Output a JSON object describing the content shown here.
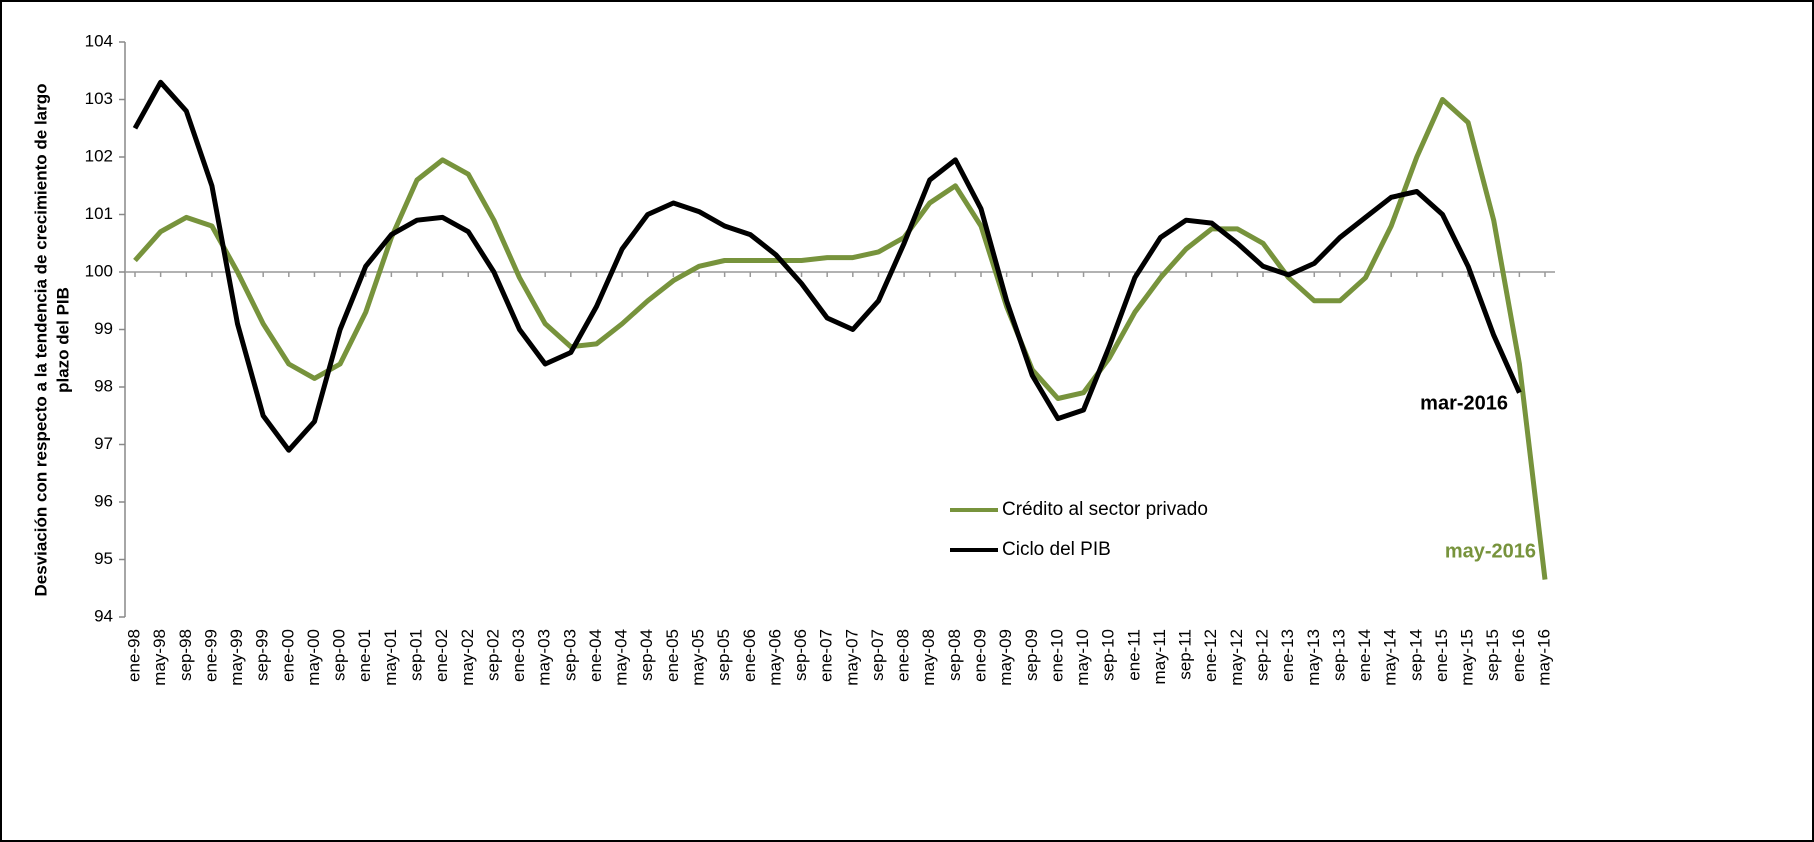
{
  "chart_data": {
    "type": "line",
    "ylabel": [
      "Desviación con respecto  a la tendencia de  crecimiento de largo",
      "plazo del PIB"
    ],
    "categories": [
      "ene-98",
      "may-98",
      "sep-98",
      "ene-99",
      "may-99",
      "sep-99",
      "ene-00",
      "may-00",
      "sep-00",
      "ene-01",
      "may-01",
      "sep-01",
      "ene-02",
      "may-02",
      "sep-02",
      "ene-03",
      "may-03",
      "sep-03",
      "ene-04",
      "may-04",
      "sep-04",
      "ene-05",
      "may-05",
      "sep-05",
      "ene-06",
      "may-06",
      "sep-06",
      "ene-07",
      "may-07",
      "sep-07",
      "ene-08",
      "may-08",
      "sep-08",
      "ene-09",
      "may-09",
      "sep-09",
      "ene-10",
      "may-10",
      "sep-10",
      "ene-11",
      "may-11",
      "sep-11",
      "ene-12",
      "may-12",
      "sep-12",
      "ene-13",
      "may-13",
      "sep-13",
      "ene-14",
      "may-14",
      "sep-14",
      "ene-15",
      "may-15",
      "sep-15",
      "ene-16",
      "may-16"
    ],
    "series": [
      {
        "name": "Crédito al sector privado",
        "color": "#77933c",
        "values": [
          100.2,
          100.7,
          100.95,
          100.8,
          100.0,
          99.1,
          98.4,
          98.15,
          98.4,
          99.3,
          100.6,
          101.6,
          101.95,
          101.7,
          100.9,
          99.9,
          99.1,
          98.7,
          98.75,
          99.1,
          99.5,
          99.85,
          100.1,
          100.2,
          100.2,
          100.2,
          100.2,
          100.25,
          100.25,
          100.35,
          100.6,
          101.2,
          101.5,
          100.8,
          99.4,
          98.3,
          97.8,
          97.9,
          98.5,
          99.3,
          99.9,
          100.4,
          100.75,
          100.75,
          100.5,
          99.9,
          99.5,
          99.5,
          99.9,
          100.8,
          102.0,
          103.0,
          102.6,
          100.9,
          98.4,
          94.65
        ]
      },
      {
        "name": "Ciclo del PIB",
        "color": "#000000",
        "values": [
          102.5,
          103.3,
          102.8,
          101.5,
          99.1,
          97.5,
          96.9,
          97.4,
          99.0,
          100.1,
          100.65,
          100.9,
          100.95,
          100.7,
          100.0,
          99.0,
          98.4,
          98.6,
          99.4,
          100.4,
          101.0,
          101.2,
          101.05,
          100.8,
          100.65,
          100.3,
          99.8,
          99.2,
          99.0,
          99.5,
          100.5,
          101.6,
          101.95,
          101.1,
          99.5,
          98.2,
          97.45,
          97.6,
          98.7,
          99.9,
          100.6,
          100.9,
          100.85,
          100.5,
          100.1,
          99.95,
          100.15,
          100.6,
          100.95,
          101.3,
          101.4,
          101.0,
          100.1,
          98.9,
          97.9,
          null
        ]
      }
    ],
    "annotations": [
      {
        "text": "mar-2016",
        "color": "#000000"
      },
      {
        "text": "may-2016",
        "color": "#77933c"
      }
    ],
    "ylim": [
      94,
      104
    ],
    "yticks": [
      94,
      95,
      96,
      97,
      98,
      99,
      100,
      101,
      102,
      103,
      104
    ],
    "x_axis_at": 100,
    "grid": false,
    "legend": "lower-center"
  }
}
